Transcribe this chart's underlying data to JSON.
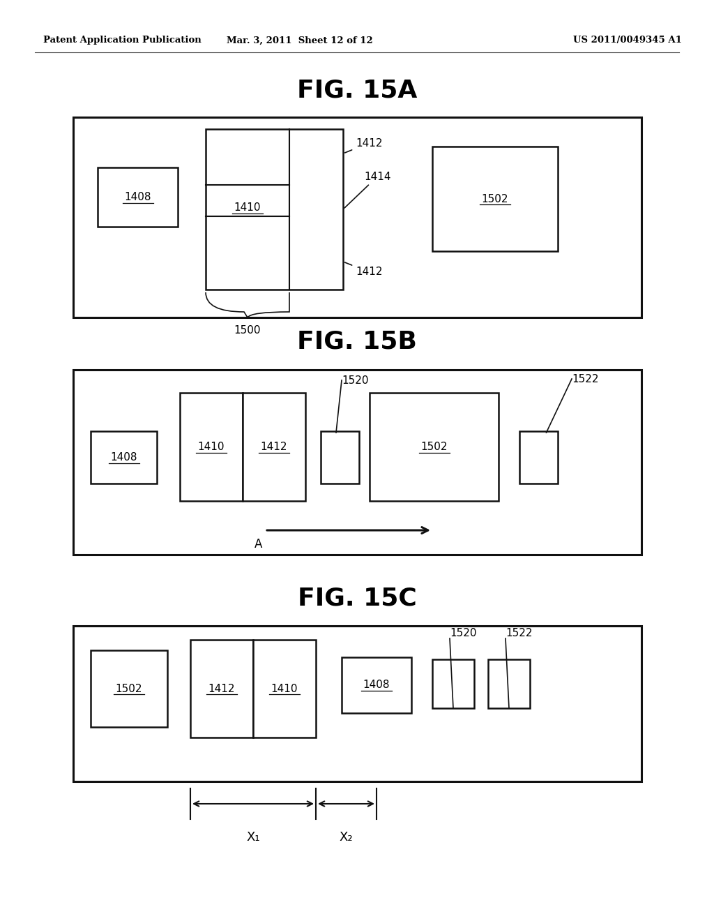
{
  "bg_color": "#ffffff",
  "text_color": "#000000",
  "header_left": "Patent Application Publication",
  "header_mid": "Mar. 3, 2011  Sheet 12 of 12",
  "header_right": "US 2011/0049345 A1",
  "fig_titles": [
    "FIG. 15A",
    "FIG. 15B",
    "FIG. 15C"
  ],
  "fig_title_fontsize": 26,
  "header_fontsize": 9.5,
  "label_fontsize": 11
}
